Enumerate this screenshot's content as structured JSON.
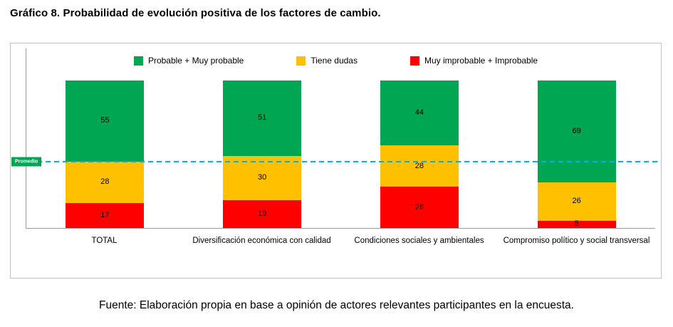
{
  "title": "Gráfico 8. Probabilidad de evolución positiva de los factores de cambio.",
  "source_note": "Fuente: Elaboración propia en base a opinión de actores relevantes participantes en la encuesta.",
  "colors": {
    "green": "#00A651",
    "yellow": "#FFC000",
    "red": "#FF0000",
    "average_line": "#00B0F0",
    "axis": "#999999"
  },
  "chart_data": {
    "type": "bar",
    "stacked": true,
    "orientation": "vertical",
    "ylim": [
      0,
      100
    ],
    "grid": false,
    "legend_position": "top",
    "categories": [
      "TOTAL",
      "Diversificación económica con calidad",
      "Condiciones sociales y ambientales",
      "Compromiso político y social transversal"
    ],
    "series": [
      {
        "name": "Probable + Muy probable",
        "color": "#00A651",
        "values": [
          55,
          51,
          44,
          69
        ]
      },
      {
        "name": "Tiene dudas",
        "color": "#FFC000",
        "values": [
          28,
          30,
          28,
          26
        ]
      },
      {
        "name": "Muy improbable + Improbable",
        "color": "#FF0000",
        "values": [
          17,
          19,
          28,
          5
        ]
      }
    ],
    "average_line": {
      "label": "Promedio",
      "value": 45,
      "color": "#00B0F0"
    }
  }
}
